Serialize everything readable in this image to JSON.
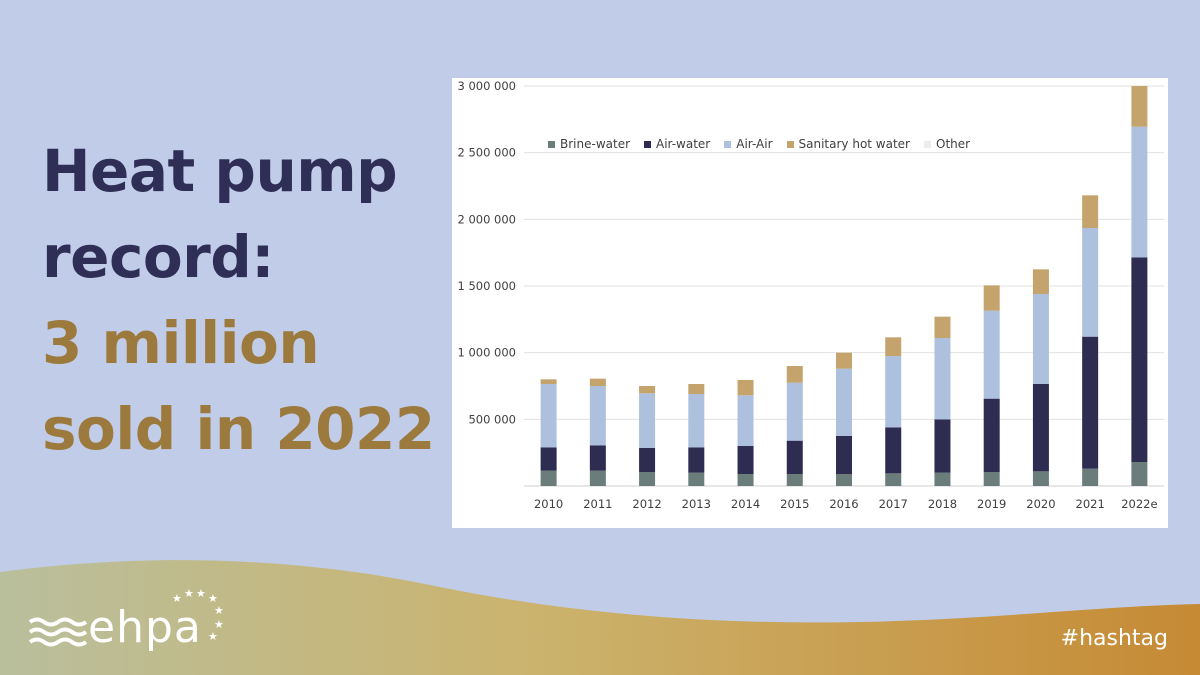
{
  "headline": {
    "line1": "Heat pump",
    "line2": "record:",
    "line3": "3 million",
    "line4": "sold in 2022"
  },
  "brand": {
    "logo_text": "ehpa",
    "hashtag": "#hashtag"
  },
  "colors": {
    "background": "#c1cde8",
    "headline_dark": "#2f2e56",
    "headline_gold": "#9c7a3e"
  },
  "chart_data": {
    "type": "bar",
    "stacked": true,
    "title": "",
    "xlabel": "",
    "ylabel": "",
    "ylim": [
      0,
      3000000
    ],
    "yticks": [
      500000,
      1000000,
      1500000,
      2000000,
      2500000,
      3000000
    ],
    "ytick_labels": [
      "500 000",
      "1 000 000",
      "1 500 000",
      "2 000 000",
      "2 500 000",
      "3 000 000"
    ],
    "grid": true,
    "legend_position": "top-left",
    "categories": [
      "2010",
      "2011",
      "2012",
      "2013",
      "2014",
      "2015",
      "2016",
      "2017",
      "2018",
      "2019",
      "2020",
      "2021",
      "2022e"
    ],
    "series": [
      {
        "name": "Brine-water",
        "color": "#6a7d7b",
        "values": [
          115000,
          115000,
          105000,
          100000,
          90000,
          90000,
          90000,
          95000,
          100000,
          105000,
          110000,
          130000,
          180000
        ]
      },
      {
        "name": "Air-water",
        "color": "#2f2c52",
        "values": [
          175000,
          190000,
          180000,
          190000,
          210000,
          250000,
          285000,
          345000,
          400000,
          550000,
          655000,
          990000,
          1535000
        ]
      },
      {
        "name": "Air-Air",
        "color": "#adc1de",
        "values": [
          475000,
          445000,
          410000,
          400000,
          380000,
          435000,
          505000,
          535000,
          610000,
          660000,
          675000,
          815000,
          980000
        ]
      },
      {
        "name": "Sanitary hot water",
        "color": "#c4a46c",
        "values": [
          35000,
          55000,
          55000,
          75000,
          115000,
          125000,
          120000,
          140000,
          160000,
          190000,
          185000,
          245000,
          305000
        ]
      },
      {
        "name": "Other",
        "color": "#ededed",
        "values": [
          0,
          0,
          0,
          0,
          0,
          0,
          0,
          0,
          0,
          0,
          0,
          0,
          0
        ]
      }
    ]
  }
}
